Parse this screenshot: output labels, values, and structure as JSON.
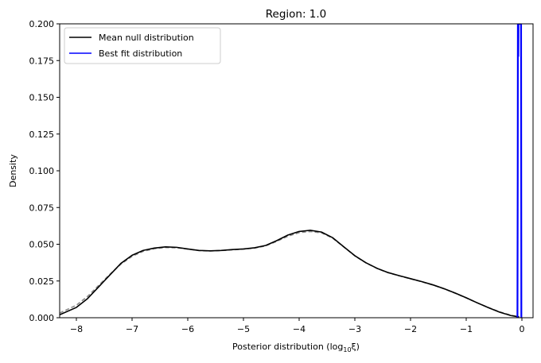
{
  "chart_data": {
    "type": "line",
    "title": "Region: 1.0",
    "xlabel_prefix": "Posterior distribution (log",
    "xlabel_sub": "10",
    "xlabel_suffix": "ξ)",
    "ylabel": "Density",
    "xlim": [
      -8.3,
      0.2
    ],
    "ylim": [
      0,
      0.2
    ],
    "x_ticks": [
      -8,
      -7,
      -6,
      -5,
      -4,
      -3,
      -2,
      -1,
      0
    ],
    "x_tick_labels": [
      "−8",
      "−7",
      "−6",
      "−5",
      "−4",
      "−3",
      "−2",
      "−1",
      "0"
    ],
    "y_ticks": [
      0,
      0.025,
      0.05,
      0.075,
      0.1,
      0.125,
      0.15,
      0.175,
      0.2
    ],
    "y_tick_labels": [
      "0.000",
      "0.025",
      "0.050",
      "0.075",
      "0.100",
      "0.125",
      "0.150",
      "0.175",
      "0.200"
    ],
    "grid": false,
    "legend_position": "top-left",
    "series": [
      {
        "name": "Mean null distribution",
        "color": "#000000",
        "style": "solid",
        "x": [
          -8.3,
          -8.0,
          -7.8,
          -7.6,
          -7.4,
          -7.2,
          -7.0,
          -6.8,
          -6.6,
          -6.4,
          -6.2,
          -6.0,
          -5.8,
          -5.6,
          -5.4,
          -5.2,
          -5.0,
          -4.8,
          -4.6,
          -4.4,
          -4.2,
          -4.0,
          -3.8,
          -3.6,
          -3.4,
          -3.2,
          -3.0,
          -2.8,
          -2.6,
          -2.4,
          -2.2,
          -2.0,
          -1.8,
          -1.6,
          -1.4,
          -1.2,
          -1.0,
          -0.8,
          -0.6,
          -0.4,
          -0.2,
          -0.05
        ],
        "y": [
          0.002,
          0.007,
          0.013,
          0.021,
          0.029,
          0.037,
          0.0425,
          0.0458,
          0.0474,
          0.0482,
          0.0479,
          0.0468,
          0.0458,
          0.0455,
          0.0458,
          0.0464,
          0.0468,
          0.0476,
          0.0492,
          0.0525,
          0.0563,
          0.0587,
          0.0595,
          0.0583,
          0.0545,
          0.0483,
          0.0422,
          0.0374,
          0.0336,
          0.0307,
          0.0286,
          0.0266,
          0.0246,
          0.0224,
          0.0198,
          0.0168,
          0.0136,
          0.0101,
          0.0068,
          0.0038,
          0.0015,
          0.0005
        ]
      },
      {
        "name": "",
        "color": "#888888",
        "style": "dashed",
        "x": [
          -8.3,
          -8.0,
          -7.8,
          -7.6,
          -7.4,
          -7.2,
          -7.0,
          -6.8,
          -6.6,
          -6.4,
          -6.2,
          -6.0,
          -5.8,
          -5.6,
          -5.4,
          -5.2,
          -5.0,
          -4.8,
          -4.6,
          -4.4,
          -4.2,
          -4.0,
          -3.8,
          -3.6,
          -3.4,
          -3.2,
          -3.0,
          -2.8,
          -2.6,
          -2.4,
          -2.2,
          -2.0,
          -1.8,
          -1.6,
          -1.4,
          -1.2,
          -1.0,
          -0.8,
          -0.6,
          -0.4,
          -0.2,
          -0.05
        ],
        "y": [
          0.0032,
          0.0085,
          0.0145,
          0.022,
          0.0295,
          0.0365,
          0.0418,
          0.0452,
          0.047,
          0.0478,
          0.0476,
          0.0467,
          0.0457,
          0.0454,
          0.0457,
          0.0462,
          0.0467,
          0.0474,
          0.0489,
          0.052,
          0.0555,
          0.0579,
          0.0587,
          0.0578,
          0.0542,
          0.0482,
          0.0421,
          0.0373,
          0.0335,
          0.0306,
          0.0285,
          0.0265,
          0.0245,
          0.0223,
          0.0197,
          0.0167,
          0.0135,
          0.0101,
          0.0069,
          0.004,
          0.0017,
          0.0007
        ]
      },
      {
        "name": "Best fit distribution",
        "color": "#0000ff",
        "style": "solid",
        "x": [
          -0.08,
          -0.075,
          -0.072,
          -0.068,
          -0.065,
          -0.062,
          -0.06,
          -0.058,
          -0.055,
          -0.05,
          -0.045,
          -0.04,
          -0.035,
          -0.03,
          -0.025,
          -0.02,
          -0.015,
          -0.01
        ],
        "y": [
          0.0,
          0.096,
          0.2,
          0.2,
          0.178,
          0.2,
          0.2,
          0.2,
          0.2,
          0.2,
          0.2,
          0.2,
          0.2,
          0.2,
          0.2,
          0.2,
          0.2,
          0.0
        ]
      }
    ]
  }
}
